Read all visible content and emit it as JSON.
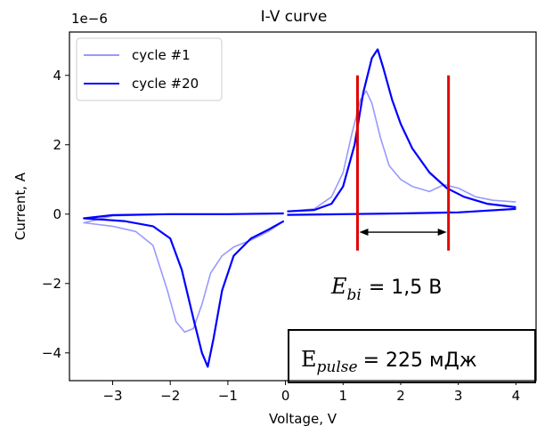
{
  "chart_data": {
    "type": "line",
    "title": "I-V curve",
    "xlabel": "Voltage, V",
    "ylabel": "Current, A",
    "y_scale_label": "1e−6",
    "xlim": [
      -3.75,
      4.35
    ],
    "ylim": [
      -4.8e-06,
      5.25e-06
    ],
    "xticks": [
      -3,
      -2,
      -1,
      0,
      1,
      2,
      3,
      4
    ],
    "xtick_labels": [
      "−3",
      "−2",
      "−1",
      "0",
      "1",
      "2",
      "3",
      "4"
    ],
    "yticks": [
      -4e-06,
      -2e-06,
      0,
      2e-06,
      4e-06
    ],
    "ytick_labels": [
      "−4",
      "−2",
      "0",
      "2",
      "4"
    ],
    "grid": false,
    "legend_position": "top-left",
    "series": [
      {
        "name": "cycle #1",
        "color": "#0000ff",
        "alpha": 0.4,
        "forward": [
          [
            0.03,
            8e-08
          ],
          [
            0.5,
            1.5e-07
          ],
          [
            0.8,
            5e-07
          ],
          [
            1.0,
            1.2e-06
          ],
          [
            1.15,
            2.3e-06
          ],
          [
            1.3,
            3.3e-06
          ],
          [
            1.4,
            3.55e-06
          ],
          [
            1.5,
            3.2e-06
          ],
          [
            1.65,
            2.2e-06
          ],
          [
            1.8,
            1.4e-06
          ],
          [
            2.0,
            1e-06
          ],
          [
            2.2,
            8e-07
          ],
          [
            2.5,
            6.5e-07
          ],
          [
            2.75,
            8.5e-07
          ],
          [
            3.0,
            7.5e-07
          ],
          [
            3.3,
            5e-07
          ],
          [
            3.6,
            4e-07
          ],
          [
            4.0,
            3.5e-07
          ]
        ],
        "reverse": [
          [
            4.0,
            1.5e-07
          ],
          [
            3.0,
            5e-08
          ],
          [
            2.0,
            2e-08
          ],
          [
            1.0,
            0.0
          ],
          [
            0.03,
            -2e-08
          ]
        ],
        "negative": [
          [
            -0.03,
            -2e-07
          ],
          [
            -0.3,
            -5e-07
          ],
          [
            -0.6,
            -7.5e-07
          ],
          [
            -0.9,
            -9.5e-07
          ],
          [
            -1.1,
            -1.2e-06
          ],
          [
            -1.3,
            -1.7e-06
          ],
          [
            -1.45,
            -2.6e-06
          ],
          [
            -1.6,
            -3.3e-06
          ],
          [
            -1.75,
            -3.4e-06
          ],
          [
            -1.9,
            -3.1e-06
          ],
          [
            -2.05,
            -2.2e-06
          ],
          [
            -2.3,
            -9e-07
          ],
          [
            -2.6,
            -5e-07
          ],
          [
            -3.0,
            -3.5e-07
          ],
          [
            -3.5,
            -2.5e-07
          ],
          [
            -3.0,
            -5e-08
          ],
          [
            -2.0,
            0.0
          ],
          [
            -1.0,
            0.0
          ],
          [
            -0.03,
            2e-08
          ]
        ]
      },
      {
        "name": "cycle #20",
        "color": "#0000ff",
        "alpha": 1.0,
        "forward": [
          [
            0.03,
            8e-08
          ],
          [
            0.5,
            1.2e-07
          ],
          [
            0.8,
            3e-07
          ],
          [
            1.0,
            8e-07
          ],
          [
            1.2,
            2e-06
          ],
          [
            1.35,
            3.5e-06
          ],
          [
            1.5,
            4.5e-06
          ],
          [
            1.6,
            4.75e-06
          ],
          [
            1.7,
            4.2e-06
          ],
          [
            1.85,
            3.3e-06
          ],
          [
            2.0,
            2.6e-06
          ],
          [
            2.2,
            1.9e-06
          ],
          [
            2.5,
            1.2e-06
          ],
          [
            2.8,
            7.5e-07
          ],
          [
            3.1,
            5e-07
          ],
          [
            3.5,
            3e-07
          ],
          [
            4.0,
            2e-07
          ]
        ],
        "reverse": [
          [
            4.0,
            1.5e-07
          ],
          [
            3.0,
            5e-08
          ],
          [
            2.0,
            2e-08
          ],
          [
            1.0,
            0.0
          ],
          [
            0.03,
            -2e-08
          ]
        ],
        "negative": [
          [
            -0.03,
            -2e-07
          ],
          [
            -0.3,
            -4.5e-07
          ],
          [
            -0.6,
            -7e-07
          ],
          [
            -0.9,
            -1.2e-06
          ],
          [
            -1.1,
            -2.2e-06
          ],
          [
            -1.25,
            -3.6e-06
          ],
          [
            -1.35,
            -4.4e-06
          ],
          [
            -1.45,
            -4e-06
          ],
          [
            -1.6,
            -3e-06
          ],
          [
            -1.8,
            -1.6e-06
          ],
          [
            -2.0,
            -7e-07
          ],
          [
            -2.3,
            -3.5e-07
          ],
          [
            -2.8,
            -2e-07
          ],
          [
            -3.5,
            -1.2e-07
          ],
          [
            -3.0,
            -3e-08
          ],
          [
            -2.0,
            0.0
          ],
          [
            -1.0,
            0.0
          ],
          [
            -0.03,
            2e-08
          ]
        ]
      }
    ],
    "annotations": {
      "vlines_x": [
        1.25,
        2.83
      ],
      "vline_color": "#e00000",
      "arrow_y": -5.2e-07,
      "ebi_main": "E",
      "ebi_sub": "bi",
      "ebi_value": "= 1,5 В",
      "pulse_main": "E",
      "pulse_sub": "pulse",
      "pulse_value": "= 225 мДж"
    }
  }
}
